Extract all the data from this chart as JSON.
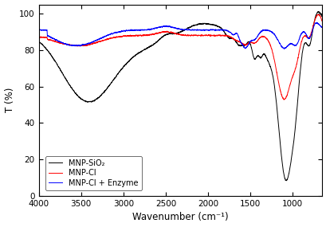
{
  "xlabel": "Wavenumber (cm⁻¹)",
  "ylabel": "T (%)",
  "xlim": [
    4000,
    650
  ],
  "ylim": [
    0,
    105
  ],
  "yticks": [
    0,
    20,
    40,
    60,
    80,
    100
  ],
  "xticks": [
    4000,
    3500,
    3000,
    2500,
    2000,
    1500,
    1000
  ],
  "legend": [
    "MNP-SiO₂",
    "MNP-Cl",
    "MNP-Cl + Enzyme"
  ],
  "line_colors": [
    "black",
    "red",
    "blue"
  ]
}
